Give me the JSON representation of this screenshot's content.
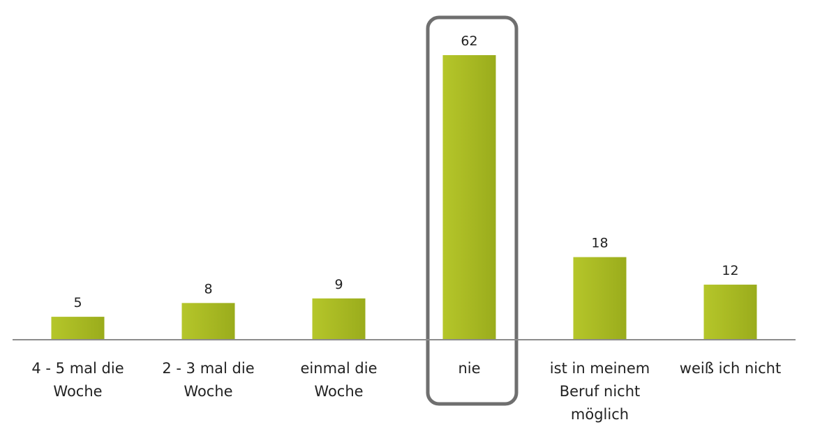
{
  "chart_data": {
    "type": "bar",
    "categories": [
      "4 - 5 mal die Woche",
      "2 - 3 mal die Woche",
      "einmal die Woche",
      "nie",
      "ist in meinem Beruf nicht möglich",
      "weiß ich nicht"
    ],
    "values": [
      5,
      8,
      9,
      62,
      18,
      12
    ],
    "color": "#a8b923"
  }
}
